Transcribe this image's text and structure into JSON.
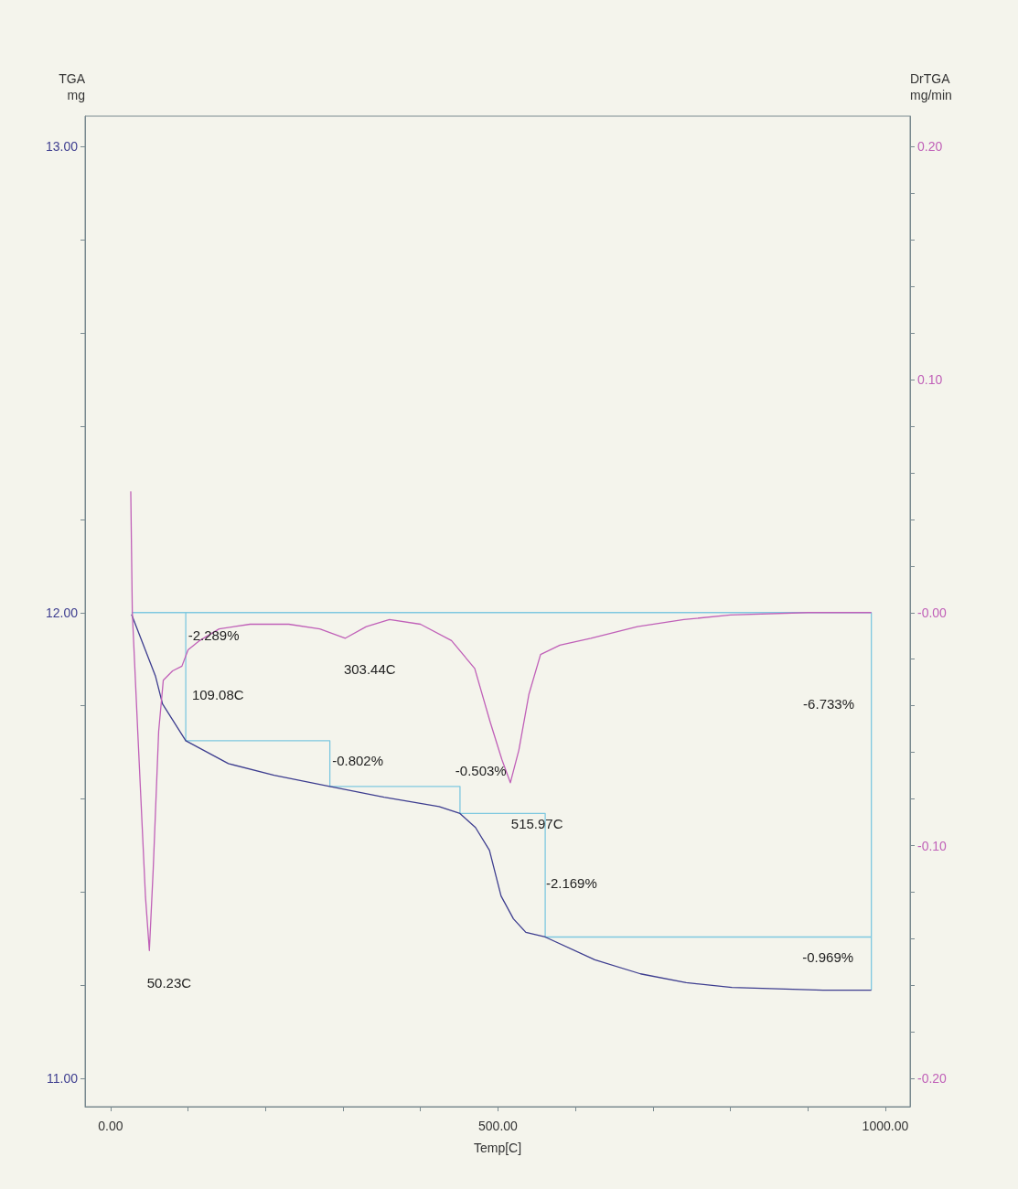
{
  "chart_data": {
    "type": "line",
    "xlabel": "Temp[C]",
    "ylabel": "TGA\nmg",
    "y2label": "DrTGA\nmg/min",
    "xlim": [
      -33,
      1032
    ],
    "xticks": [
      {
        "value": 0,
        "label": "0.00"
      },
      {
        "value": 100,
        "label": null
      },
      {
        "value": 200,
        "label": null
      },
      {
        "value": 300,
        "label": null
      },
      {
        "value": 400,
        "label": null
      },
      {
        "value": 500,
        "label": "500.00"
      },
      {
        "value": 600,
        "label": null
      },
      {
        "value": 700,
        "label": null
      },
      {
        "value": 800,
        "label": null
      },
      {
        "value": 900,
        "label": null
      },
      {
        "value": 1000,
        "label": "1000.00"
      }
    ],
    "ylim": [
      10.94,
      13.065
    ],
    "yticks": [
      {
        "value": 11,
        "label": "11.00"
      },
      {
        "value": 11.2,
        "label": null
      },
      {
        "value": 11.4,
        "label": null
      },
      {
        "value": 11.6,
        "label": null
      },
      {
        "value": 11.8,
        "label": null
      },
      {
        "value": 12,
        "label": "12.00"
      },
      {
        "value": 12.2,
        "label": null
      },
      {
        "value": 12.4,
        "label": null
      },
      {
        "value": 12.6,
        "label": null
      },
      {
        "value": 12.8,
        "label": null
      },
      {
        "value": 13,
        "label": "13.00"
      }
    ],
    "y2lim": [
      -0.212,
      0.213
    ],
    "y2ticks": [
      {
        "value": -0.2,
        "label": "-0.20"
      },
      {
        "value": -0.18,
        "label": null
      },
      {
        "value": -0.16,
        "label": null
      },
      {
        "value": -0.14,
        "label": null
      },
      {
        "value": -0.12,
        "label": null
      },
      {
        "value": -0.1,
        "label": "-0.10"
      },
      {
        "value": -0.08,
        "label": null
      },
      {
        "value": -0.06,
        "label": null
      },
      {
        "value": -0.04,
        "label": null
      },
      {
        "value": -0.02,
        "label": null
      },
      {
        "value": 0,
        "label": "-0.00"
      },
      {
        "value": 0.02,
        "label": null
      },
      {
        "value": 0.04,
        "label": null
      },
      {
        "value": 0.06,
        "label": null
      },
      {
        "value": 0.08,
        "label": null
      },
      {
        "value": 0.1,
        "label": "0.10"
      },
      {
        "value": 0.12,
        "label": null
      },
      {
        "value": 0.14,
        "label": null
      },
      {
        "value": 0.16,
        "label": null
      },
      {
        "value": 0.18,
        "label": null
      },
      {
        "value": 0.2,
        "label": "0.20"
      }
    ],
    "grid": false,
    "marker": "none",
    "line_style": "solid",
    "series": [
      {
        "color": "#7ec8e0",
        "x": [
          27,
          982
        ],
        "values": [
          12.0,
          12.0
        ]
      },
      {
        "color": "#7ec8e0",
        "x": [
          97,
          97,
          283,
          283,
          451,
          451,
          561,
          561,
          982
        ],
        "values": [
          12.0,
          11.725,
          11.725,
          11.627,
          11.627,
          11.569,
          11.569,
          11.304,
          11.304
        ]
      },
      {
        "color": "#7ec8e0",
        "x": [
          982,
          982
        ],
        "values": [
          12.0,
          11.19
        ]
      },
      {
        "color": "#3d3d8f",
        "x": [
          27,
          58,
          67,
          97,
          152,
          211,
          283,
          353,
          424,
          451,
          471,
          489,
          504,
          520,
          536,
          561,
          625,
          684,
          743,
          802,
          920,
          982
        ],
        "values": [
          11.996,
          11.863,
          11.804,
          11.725,
          11.676,
          11.651,
          11.627,
          11.604,
          11.584,
          11.569,
          11.539,
          11.49,
          11.392,
          11.343,
          11.314,
          11.304,
          11.255,
          11.225,
          11.206,
          11.196,
          11.19,
          11.19
        ]
      },
      {
        "color": "#c060b8",
        "axis": "y2",
        "x": [
          26,
          28,
          35,
          45,
          50,
          55,
          62,
          68,
          80,
          92,
          100,
          115,
          140,
          180,
          230,
          270,
          303,
          330,
          360,
          400,
          440,
          470,
          490,
          505,
          516,
          527,
          540,
          555,
          580,
          620,
          680,
          740,
          800,
          900,
          982
        ],
        "values": [
          0.052,
          0.0,
          -0.051,
          -0.122,
          -0.145,
          -0.11,
          -0.051,
          -0.029,
          -0.025,
          -0.023,
          -0.016,
          -0.012,
          -0.007,
          -0.005,
          -0.005,
          -0.007,
          -0.011,
          -0.006,
          -0.003,
          -0.005,
          -0.012,
          -0.024,
          -0.047,
          -0.063,
          -0.073,
          -0.059,
          -0.035,
          -0.018,
          -0.014,
          -0.011,
          -0.006,
          -0.003,
          -0.001,
          0.0,
          0.0
        ]
      }
    ],
    "annotations": [
      "-2.289%",
      "109.08C",
      "303.44C",
      "-0.802%",
      "-0.503%",
      "515.97C",
      "-2.169%",
      "-6.733%",
      "-0.969%",
      "50.23C"
    ]
  }
}
